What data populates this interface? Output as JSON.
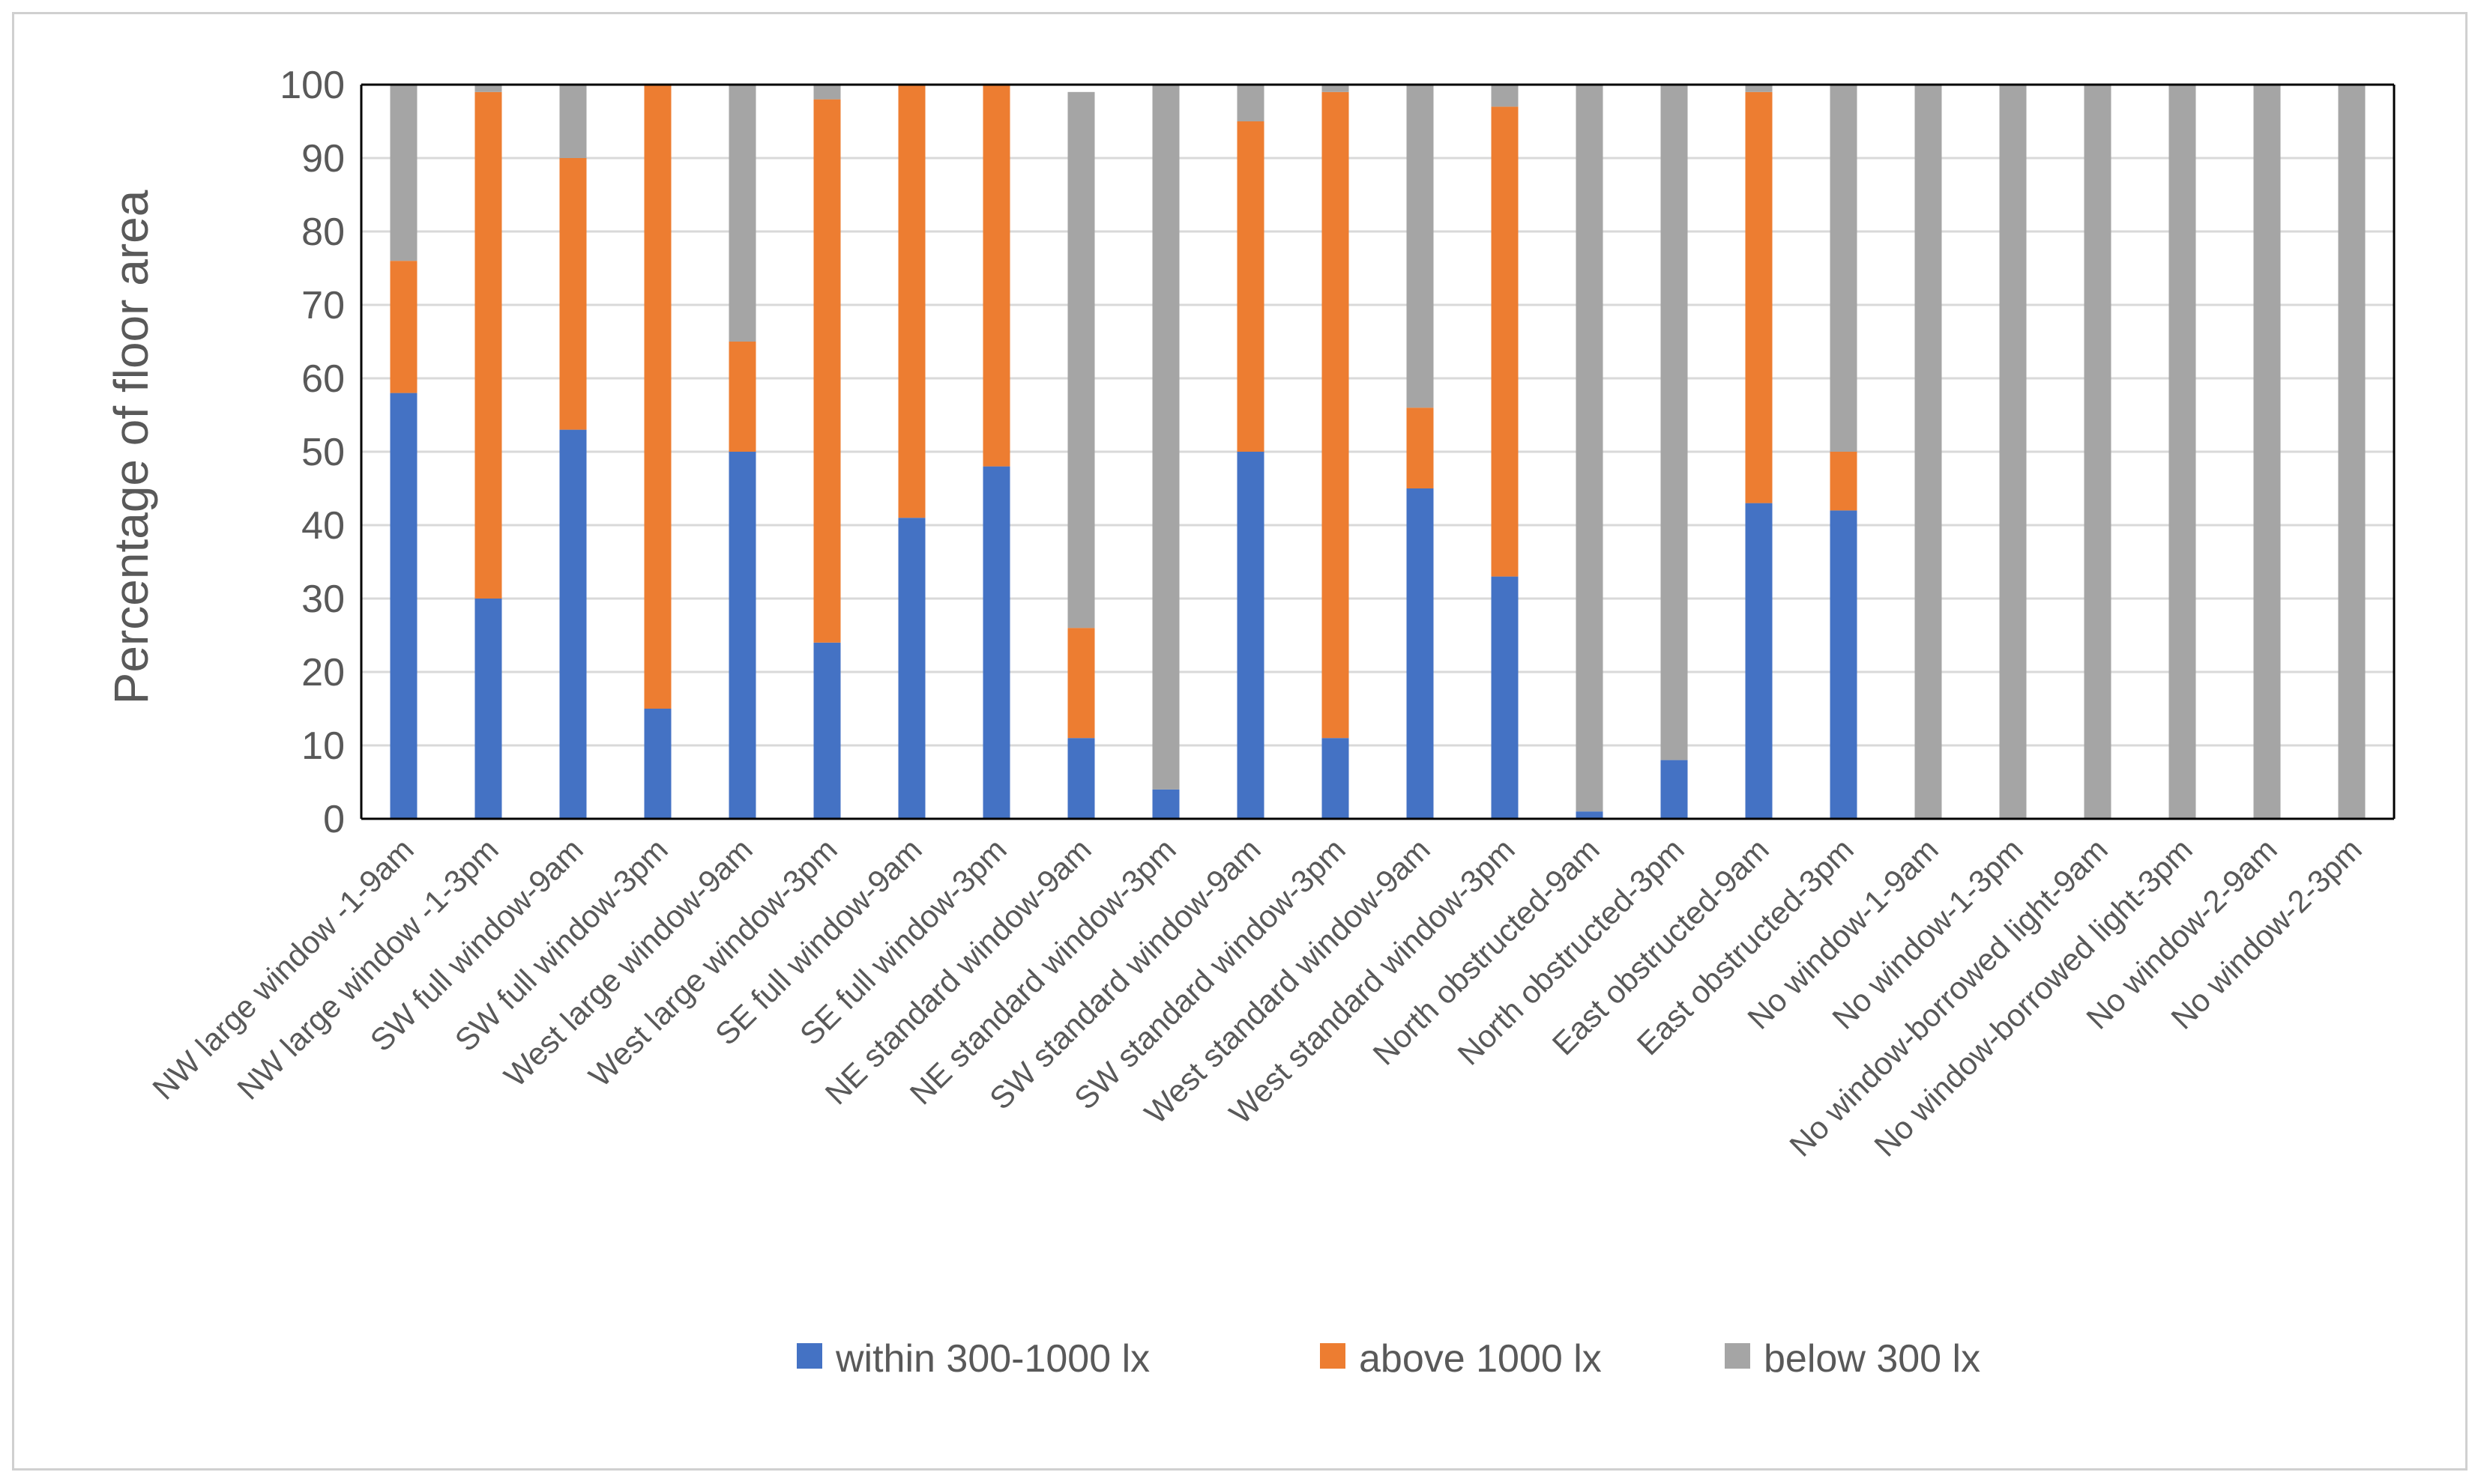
{
  "chart_data": {
    "type": "bar",
    "stacked": true,
    "title": "",
    "xlabel": "",
    "ylabel": "Percentage of floor area",
    "ylim": [
      0,
      100
    ],
    "yticks": [
      "0",
      "10",
      "20",
      "30",
      "40",
      "50",
      "60",
      "70",
      "80",
      "90",
      "100"
    ],
    "grid": true,
    "legend_position": "bottom",
    "categories": [
      "NW large window -1-9am",
      "NW large window -1-3pm",
      "SW full window-9am",
      "SW full window-3pm",
      "West large window-9am",
      "West large window-3pm",
      "SE full window-9am",
      "SE full window-3pm",
      "NE standard window-9am",
      "NE standard window-3pm",
      "SW standard window-9am",
      "SW standard window-3pm",
      "West standard window-9am",
      "West standard window-3pm",
      "North obstructed-9am",
      "North obstructed-3pm",
      "East obstructed-9am",
      "East obstructed-3pm",
      "No window-1-9am",
      "No window-1-3pm",
      "No window-borrowed light-9am",
      "No window-borrowed light-3pm",
      "No window-2-9am",
      "No window-2-3pm"
    ],
    "series": [
      {
        "name": "within 300-1000 lx",
        "color": "#4472C4",
        "values": [
          58,
          30,
          53,
          15,
          50,
          24,
          41,
          48,
          11,
          4,
          50,
          11,
          45,
          33,
          1,
          8,
          43,
          42,
          0,
          0,
          0,
          0,
          0,
          0
        ]
      },
      {
        "name": "above 1000 lx",
        "color": "#ED7D31",
        "values": [
          18,
          69,
          37,
          85,
          15,
          74,
          59,
          52,
          15,
          0,
          45,
          88,
          11,
          64,
          0,
          0,
          56,
          8,
          0,
          0,
          0,
          0,
          0,
          0
        ]
      },
      {
        "name": "below 300 lx",
        "color": "#A5A5A5",
        "values": [
          24,
          1,
          10,
          0,
          35,
          2,
          0,
          0,
          73,
          96,
          5,
          1,
          44,
          3,
          99,
          92,
          1,
          50,
          100,
          100,
          100,
          100,
          100,
          100
        ]
      }
    ]
  }
}
